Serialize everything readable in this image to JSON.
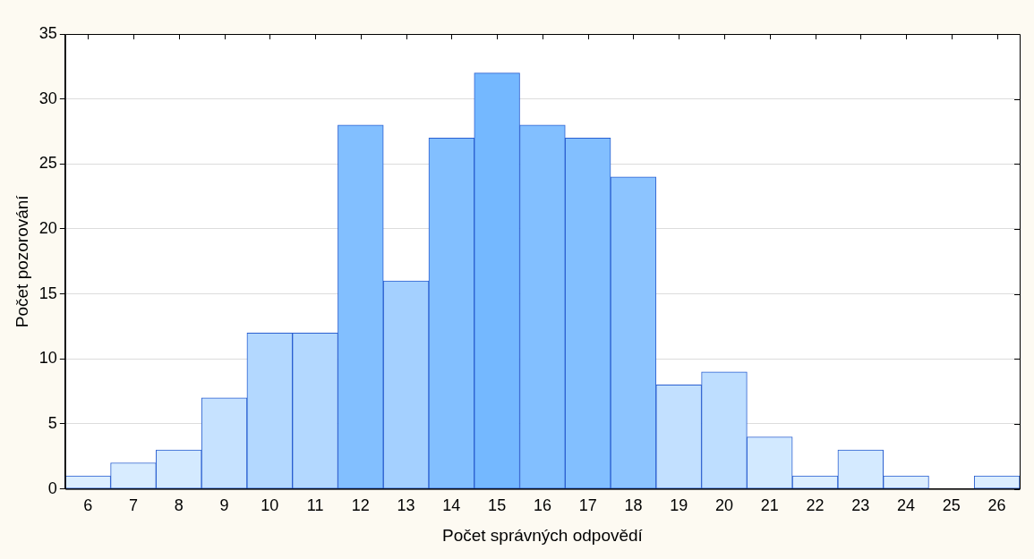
{
  "chart_data": {
    "type": "bar",
    "xlabel": "Počet správných odpovědí",
    "ylabel": "Počet pozorování",
    "categories": [
      "6",
      "7",
      "8",
      "9",
      "10",
      "11",
      "12",
      "13",
      "14",
      "15",
      "16",
      "17",
      "18",
      "19",
      "20",
      "21",
      "22",
      "23",
      "24",
      "25",
      "26"
    ],
    "values": [
      1,
      2,
      3,
      7,
      12,
      12,
      28,
      16,
      27,
      32,
      28,
      27,
      24,
      8,
      9,
      4,
      1,
      3,
      1,
      0,
      1
    ],
    "colors": [
      "#dceeff",
      "#d8ecff",
      "#d4eaff",
      "#c6e2ff",
      "#b3d8ff",
      "#b3d8ff",
      "#82bfff",
      "#a4d0ff",
      "#82bfff",
      "#74b8ff",
      "#82bfff",
      "#82bfff",
      "#8cc4ff",
      "#c2e0ff",
      "#bedeff",
      "#d2e9ff",
      "#dceeff",
      "#d4eaff",
      "#dceeff",
      "#e0f0ff",
      "#dceeff"
    ],
    "ylim": [
      0,
      35
    ],
    "yticks": [
      0,
      5,
      10,
      15,
      20,
      25,
      30,
      35
    ],
    "grid": "y"
  }
}
